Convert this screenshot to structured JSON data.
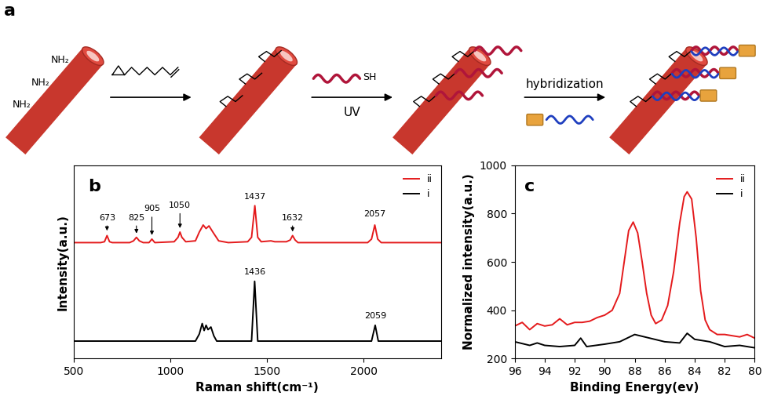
{
  "diagram": {
    "label": "a",
    "texts": {
      "amine": "NH₂",
      "thiol": "SH",
      "uv": "UV",
      "hybridization": "hybridization"
    }
  },
  "chart_data": [
    {
      "type": "line",
      "title": "b",
      "x_label": "Raman shift(cm⁻¹)",
      "y_label": "Intensity(a.u.)",
      "xlim": [
        500,
        2400
      ],
      "xticks": [
        500,
        1000,
        1500,
        2000
      ],
      "ylim": [
        0,
        1.1
      ],
      "tick_labels": "x",
      "legend": "upper right",
      "series": [
        {
          "name": "ii",
          "color": "#e41a1c",
          "x": [
            500,
            640,
            660,
            673,
            686,
            700,
            790,
            810,
            825,
            840,
            860,
            890,
            905,
            920,
            1020,
            1040,
            1050,
            1060,
            1080,
            1130,
            1150,
            1170,
            1185,
            1200,
            1220,
            1250,
            1300,
            1400,
            1420,
            1437,
            1452,
            1470,
            1520,
            1540,
            1600,
            1620,
            1632,
            1645,
            1660,
            2020,
            2040,
            2057,
            2072,
            2090,
            2400
          ],
          "values": [
            0.66,
            0.66,
            0.665,
            0.7,
            0.665,
            0.66,
            0.66,
            0.67,
            0.69,
            0.67,
            0.66,
            0.66,
            0.68,
            0.66,
            0.665,
            0.69,
            0.72,
            0.69,
            0.665,
            0.67,
            0.72,
            0.76,
            0.74,
            0.755,
            0.72,
            0.67,
            0.66,
            0.665,
            0.69,
            0.87,
            0.69,
            0.665,
            0.67,
            0.665,
            0.665,
            0.675,
            0.7,
            0.675,
            0.66,
            0.66,
            0.68,
            0.76,
            0.68,
            0.66,
            0.66
          ]
        },
        {
          "name": "i",
          "color": "#000000",
          "x": [
            500,
            1130,
            1150,
            1165,
            1175,
            1185,
            1195,
            1210,
            1225,
            1240,
            1420,
            1436,
            1452,
            2040,
            2059,
            2075,
            2400
          ],
          "values": [
            0.1,
            0.1,
            0.14,
            0.2,
            0.16,
            0.19,
            0.165,
            0.18,
            0.13,
            0.1,
            0.1,
            0.44,
            0.1,
            0.1,
            0.19,
            0.1,
            0.1
          ]
        }
      ],
      "annotations": [
        {
          "text": "673",
          "x": 673,
          "y": 0.78,
          "point_y": 0.715
        },
        {
          "text": "825",
          "x": 825,
          "y": 0.78,
          "point_y": 0.7
        },
        {
          "text": "905",
          "x": 905,
          "y": 0.83,
          "point_y": 0.69
        },
        {
          "text": "1050",
          "x": 1050,
          "y": 0.85,
          "point_y": 0.73
        },
        {
          "text": "1437",
          "x": 1437,
          "y": 0.9
        },
        {
          "text": "1632",
          "x": 1632,
          "y": 0.78,
          "point_y": 0.71
        },
        {
          "text": "2057",
          "x": 2057,
          "y": 0.8
        },
        {
          "text": "1436",
          "x": 1436,
          "y": 0.47
        },
        {
          "text": "2059",
          "x": 2059,
          "y": 0.22
        }
      ]
    },
    {
      "type": "line",
      "title": "c",
      "x_label": "Binding Energy(ev)",
      "y_label": "Normalized intensity(a.u.)",
      "xlim": [
        96,
        80
      ],
      "xticks": [
        96,
        94,
        92,
        90,
        88,
        86,
        84,
        82,
        80
      ],
      "ylim": [
        200,
        1000
      ],
      "yticks": [
        200,
        400,
        600,
        800,
        1000
      ],
      "legend": "upper right",
      "series": [
        {
          "name": "ii",
          "color": "#e41a1c",
          "x": [
            96,
            95.5,
            95,
            94.5,
            94,
            93.5,
            93,
            92.5,
            92,
            91.5,
            91,
            90.5,
            90,
            89.5,
            89,
            88.7,
            88.4,
            88.1,
            87.8,
            87.5,
            87.2,
            86.9,
            86.6,
            86.2,
            85.8,
            85.4,
            85.0,
            84.7,
            84.5,
            84.2,
            83.9,
            83.6,
            83.3,
            83.0,
            82.5,
            82,
            81.5,
            81,
            80.5,
            80
          ],
          "values": [
            335,
            350,
            320,
            345,
            335,
            340,
            365,
            340,
            350,
            350,
            355,
            370,
            380,
            400,
            470,
            600,
            730,
            765,
            720,
            600,
            470,
            380,
            345,
            360,
            420,
            560,
            760,
            870,
            890,
            860,
            700,
            480,
            360,
            320,
            300,
            300,
            295,
            290,
            300,
            285
          ]
        },
        {
          "name": "i",
          "color": "#000000",
          "x": [
            96,
            95,
            94.5,
            94,
            93,
            92,
            91.6,
            91.2,
            90,
            89,
            88,
            87,
            86,
            85,
            84.5,
            84,
            83,
            82,
            81,
            80
          ],
          "values": [
            270,
            255,
            265,
            255,
            250,
            255,
            285,
            250,
            260,
            270,
            300,
            285,
            270,
            265,
            305,
            280,
            270,
            250,
            255,
            245
          ]
        }
      ]
    }
  ]
}
